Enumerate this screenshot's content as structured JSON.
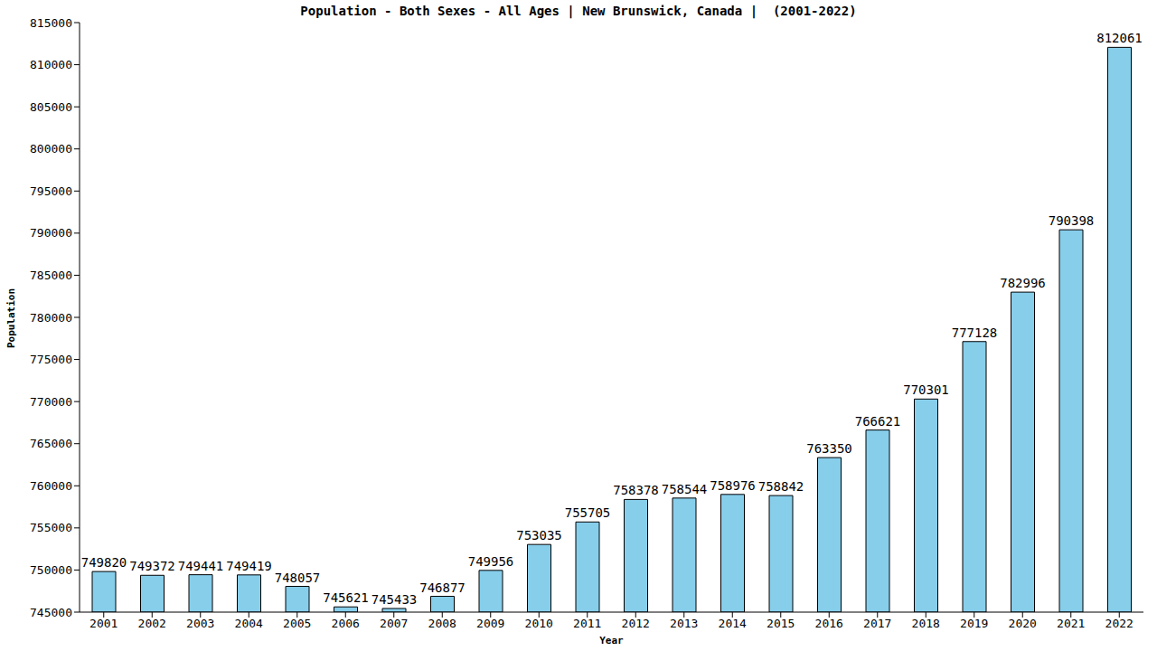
{
  "chart_data": {
    "type": "bar",
    "title": "Population - Both Sexes - All Ages | New Brunswick, Canada |  (2001-2022)",
    "xlabel": "Year",
    "ylabel": "Population",
    "categories": [
      "2001",
      "2002",
      "2003",
      "2004",
      "2005",
      "2006",
      "2007",
      "2008",
      "2009",
      "2010",
      "2011",
      "2012",
      "2013",
      "2014",
      "2015",
      "2016",
      "2017",
      "2018",
      "2019",
      "2020",
      "2021",
      "2022"
    ],
    "values": [
      749820,
      749372,
      749441,
      749419,
      748057,
      745621,
      745433,
      746877,
      749956,
      753035,
      755705,
      758378,
      758544,
      758976,
      758842,
      763350,
      766621,
      770301,
      777128,
      782996,
      790398,
      812061
    ],
    "color": "#87ceeb",
    "ylim": [
      745000,
      815000
    ],
    "yticks": [
      745000,
      750000,
      755000,
      760000,
      765000,
      770000,
      775000,
      780000,
      785000,
      790000,
      795000,
      800000,
      805000,
      810000,
      815000
    ],
    "grid": false,
    "data_labels": true
  }
}
